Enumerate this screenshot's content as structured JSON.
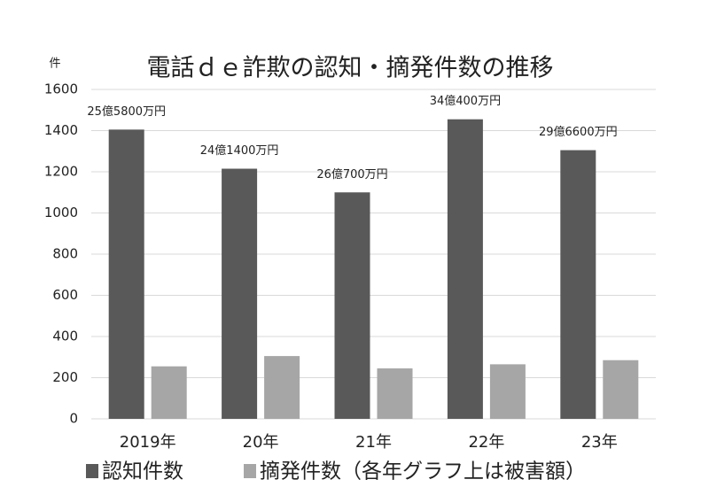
{
  "chart_data": {
    "type": "bar",
    "title": "電話ｄｅ詐欺の認知・摘発件数の推移",
    "y_unit": "件",
    "categories": [
      "2019年",
      "20年",
      "21年",
      "22年",
      "23年"
    ],
    "series": [
      {
        "name": "認知件数",
        "color": "#595959",
        "values": [
          1405,
          1215,
          1100,
          1455,
          1305
        ]
      },
      {
        "name": "摘発件数（各年グラフ上は被害額）",
        "color": "#a6a6a6",
        "values": [
          255,
          305,
          245,
          265,
          285
        ]
      }
    ],
    "annotations": [
      "25億5800万円",
      "24億1400万円",
      "26億700万円",
      "34億400万円",
      "29億6600万円"
    ],
    "ylim": [
      0,
      1600
    ],
    "yticks": [
      0,
      200,
      400,
      600,
      800,
      1000,
      1200,
      1400,
      1600
    ],
    "grid": true
  }
}
